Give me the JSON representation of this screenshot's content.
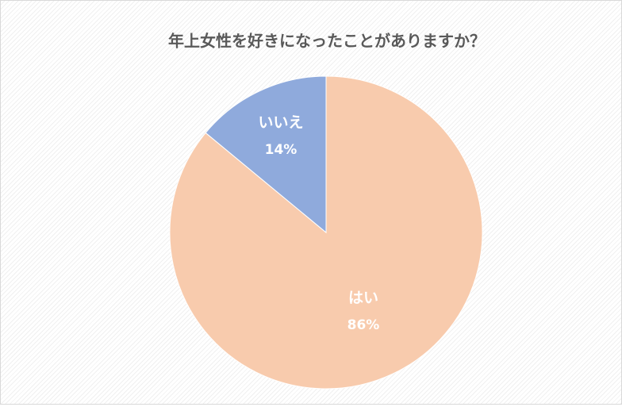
{
  "chart_data": {
    "type": "pie",
    "title": "年上女性を好きになったことがありますか？",
    "categories": [
      "はい",
      "いいえ"
    ],
    "values": [
      86,
      14
    ],
    "value_labels": [
      "86%",
      "14%"
    ],
    "colors": [
      "#f8cbad",
      "#8faadc"
    ]
  }
}
